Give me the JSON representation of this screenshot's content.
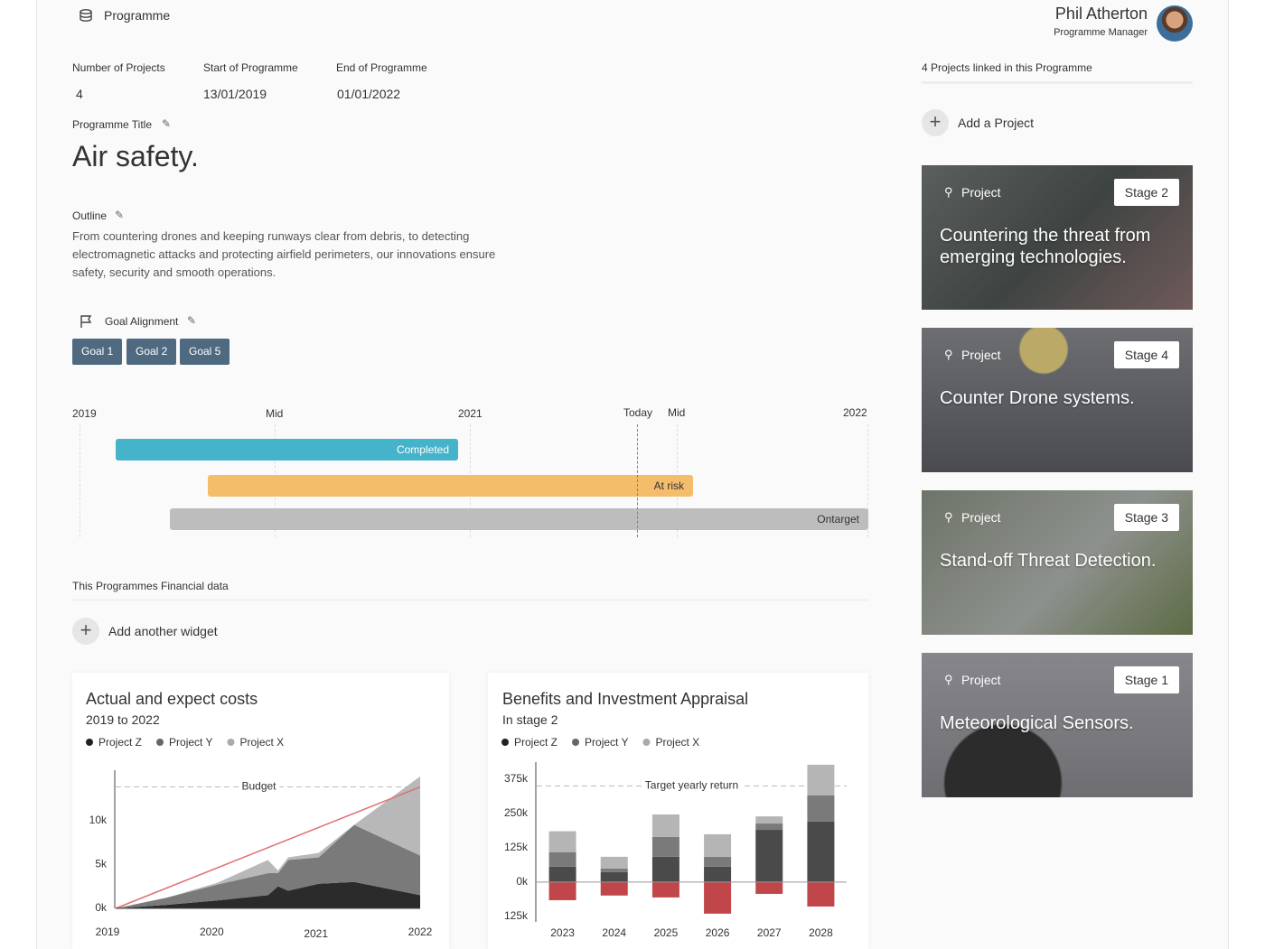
{
  "header": {
    "section": "Programme",
    "user_name": "Phil Atherton",
    "user_role": "Programme Manager"
  },
  "stats": [
    {
      "label": "Number of Projects",
      "value": "4"
    },
    {
      "label": "Start of Programme",
      "value": "13/01/2019"
    },
    {
      "label": "End of Programme",
      "value": "01/01/2022"
    }
  ],
  "title_label": "Programme Title",
  "title": "Air safety.",
  "outline_label": "Outline",
  "outline": "From countering drones and keeping runways clear from debris, to detecting electromagnetic attacks and protecting airfield perimeters, our innovations ensure safety, security and smooth operations.",
  "goal_label": "Goal Alignment",
  "goals": [
    "Goal 1",
    "Goal 2",
    "Goal 5"
  ],
  "timeline": {
    "labels": [
      "2019",
      "Mid",
      "2021",
      "Today",
      "Mid",
      "2022"
    ],
    "bars": [
      {
        "label": "Completed",
        "color": "#45b3c9"
      },
      {
        "label": "At risk",
        "color": "#f3bd6a"
      },
      {
        "label": "Ontarget",
        "color": "#bdbdbd"
      }
    ]
  },
  "financial_label": "This Programmes Financial data",
  "add_widget": "Add another widget",
  "widgets": [
    {
      "title": "Actual and expect costs",
      "subtitle": "2019 to 2022",
      "chart": {
        "type": "area",
        "x": [
          2019,
          2019.5,
          2020,
          2020.5,
          2020.6,
          2020.7,
          2021,
          2021.35,
          2022
        ],
        "xlim": [
          2019,
          2022
        ],
        "xticks": [
          2019,
          2020,
          2021,
          2022
        ],
        "ylim": [
          0,
          15500
        ],
        "yticks": [
          {
            "value": 0,
            "label": "0k"
          },
          {
            "value": 5000,
            "label": "5k"
          },
          {
            "value": 10000,
            "label": "10k"
          }
        ],
        "series": [
          {
            "name": "Project Z",
            "color": "#2b2b2b",
            "legend_color": "#222222",
            "values": [
              0,
              400,
              900,
              1500,
              2500,
              2000,
              2800,
              3000,
              1500
            ]
          },
          {
            "name": "Project Y",
            "color": "#7a7a7a",
            "legend_color": "#666666",
            "values": [
              0,
              800,
              1800,
              2500,
              1500,
              3500,
              3000,
              6500,
              4500
            ]
          },
          {
            "name": "Project X",
            "color": "#b8b8b8",
            "legend_color": "#aaaaaa",
            "values": [
              0,
              0,
              200,
              1500,
              300,
              300,
              500,
              0,
              9000
            ]
          }
        ],
        "budget": {
          "label": "Budget",
          "value": 13800,
          "color": "#e07070"
        }
      }
    },
    {
      "title": "Benefits and Investment Appraisal",
      "subtitle": "In stage 2",
      "chart": {
        "type": "bar",
        "categories": [
          "2023",
          "2024",
          "2025",
          "2026",
          "2027",
          "2028"
        ],
        "ylim": [
          -145000,
          430000
        ],
        "yticks": [
          {
            "value": 375000,
            "label": "375k"
          },
          {
            "value": 250000,
            "label": "250k"
          },
          {
            "value": 125000,
            "label": "125k"
          },
          {
            "value": 0,
            "label": "0k"
          },
          {
            "value": -125000,
            "label": "125k"
          }
        ],
        "series": [
          {
            "name": "Project Z",
            "color": "#4a4a4a",
            "legend_color": "#222222",
            "values": [
              56000,
              36000,
              92000,
              56000,
              190000,
              220000
            ]
          },
          {
            "name": "Project Y",
            "color": "#7a7a7a",
            "legend_color": "#666666",
            "values": [
              53000,
              13000,
              72000,
              36000,
              23000,
              95000
            ]
          },
          {
            "name": "Project X",
            "color": "#b5b5b5",
            "legend_color": "#aaaaaa",
            "values": [
              76000,
              43000,
              82000,
              82000,
              26000,
              112000
            ]
          },
          {
            "color": "#c0464a",
            "values": [
              -66000,
              -49000,
              -56000,
              -115000,
              -43000,
              -89000
            ]
          }
        ],
        "target": {
          "label": "Target yearly return",
          "value": 350000
        }
      }
    }
  ],
  "projects_label": "4 Projects linked in this Programme",
  "add_project": "Add a Project",
  "projects": [
    {
      "kind": "Project",
      "stage": "Stage 2",
      "title": "Countering the threat from emerging technologies."
    },
    {
      "kind": "Project",
      "stage": "Stage 4",
      "title": "Counter Drone systems."
    },
    {
      "kind": "Project",
      "stage": "Stage 3",
      "title": "Stand-off Threat Detection."
    },
    {
      "kind": "Project",
      "stage": "Stage 1",
      "title": "Meteorological Sensors."
    }
  ]
}
